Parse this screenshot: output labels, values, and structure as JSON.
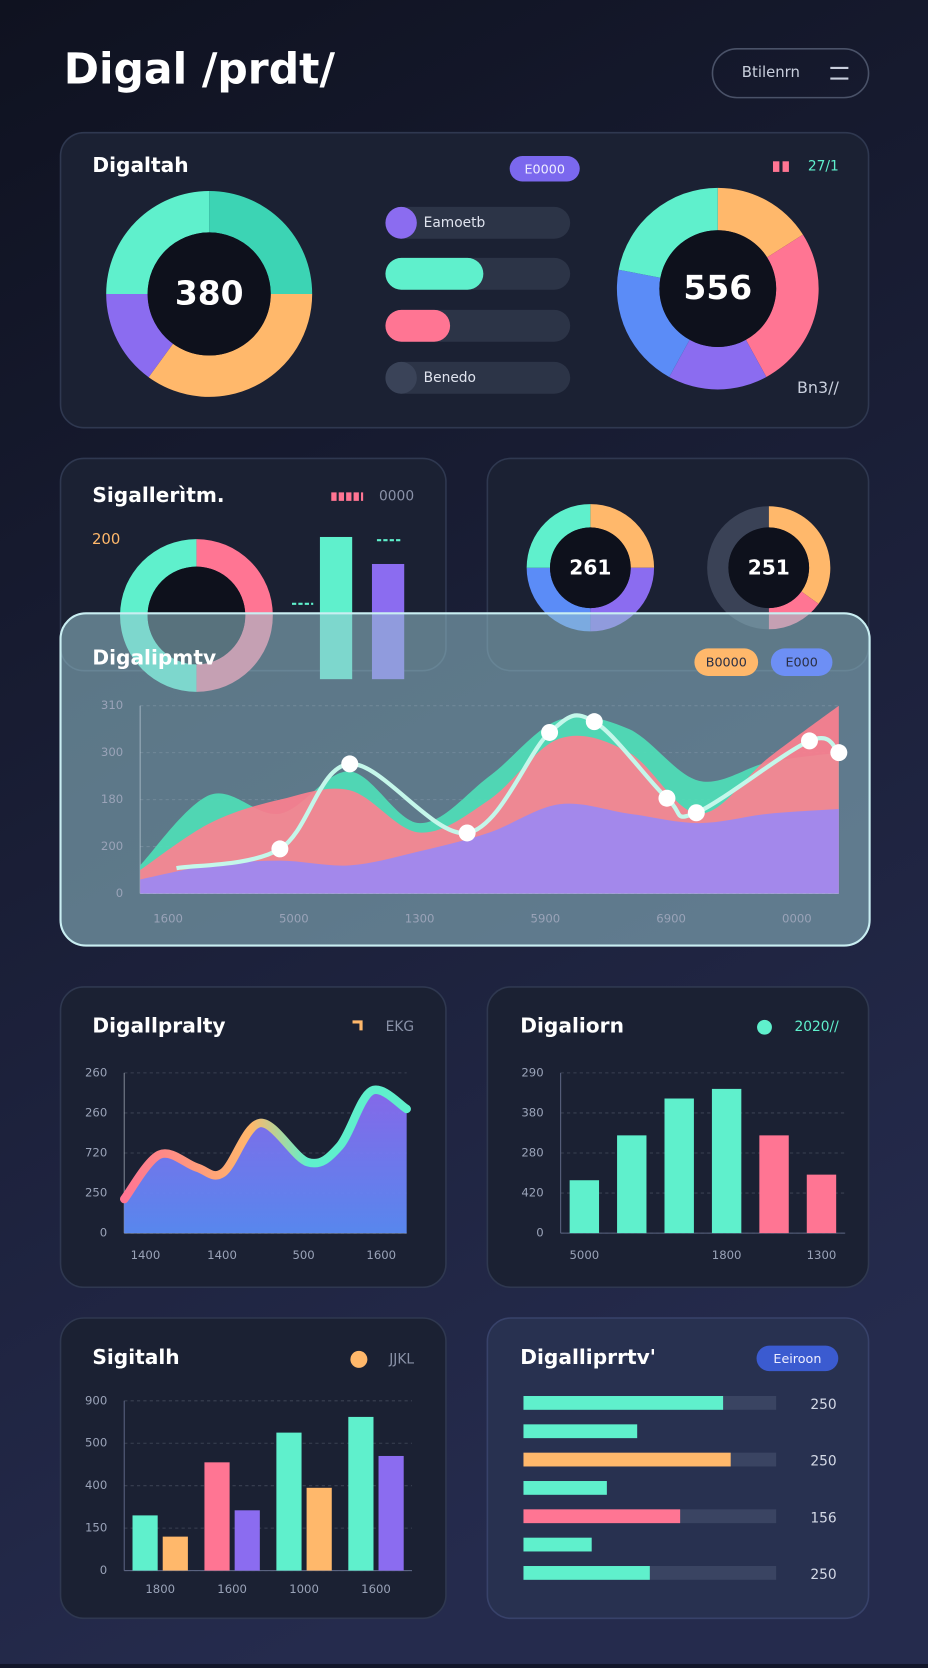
{
  "header": {
    "title": "Digal /prdt/",
    "button": "Btilenrn"
  },
  "chart_data": [
    {
      "type": "donut",
      "title": "Digaltah",
      "badge": "E0000",
      "center_label": "380",
      "values": [
        25,
        35,
        15,
        25
      ],
      "colors": [
        "#3cd4b4",
        "#ffb86b",
        "#8b6cf0",
        "#5ff0cc"
      ]
    },
    {
      "type": "progress",
      "labels": [
        "Eamoetb",
        null,
        null,
        "Benedo"
      ],
      "values": [
        17,
        53,
        35,
        17
      ],
      "colors": [
        "#8b6cf0",
        "#5ff0cc",
        "#ff7593",
        "#3a4358"
      ]
    },
    {
      "type": "donut",
      "center_label": "556",
      "legend_text": "27/1",
      "note": "Bn3//",
      "values": [
        16,
        26,
        16,
        20,
        22
      ],
      "colors": [
        "#ffb86b",
        "#ff7593",
        "#8b6cf0",
        "#5b8cf7",
        "#5ff0cc"
      ]
    },
    {
      "type": "donut",
      "title": "Sigallerìtm.",
      "annotation": "200",
      "legend_text": "0000",
      "values": [
        50,
        50
      ],
      "colors": [
        "#ff7593",
        "#5ff0cc"
      ]
    },
    {
      "type": "bar",
      "values": [
        100,
        81
      ],
      "colors": [
        "#5ff0cc",
        "#8b6cf0"
      ],
      "ylim": [
        0,
        100
      ]
    },
    {
      "type": "donut",
      "center_label": "261",
      "values": [
        25,
        25,
        25,
        25
      ],
      "colors": [
        "#ffb86b",
        "#8b6cf0",
        "#5b8cf7",
        "#5ff0cc"
      ]
    },
    {
      "type": "donut",
      "center_label": "251",
      "values": [
        35,
        15,
        50
      ],
      "colors": [
        "#ffb86b",
        "#ff7593",
        "#3a4256"
      ]
    },
    {
      "type": "area",
      "title": "Digalipmtv",
      "badges": [
        "B0000",
        "E000"
      ],
      "x": [
        0,
        5,
        10,
        15,
        20,
        25,
        30,
        35,
        40,
        45,
        50
      ],
      "series": [
        {
          "type": "area",
          "color": "#4fe0b8",
          "values": [
            60,
            210,
            170,
            260,
            150,
            250,
            370,
            350,
            240,
            280,
            300
          ]
        },
        {
          "type": "area",
          "color": "#ff7f8f",
          "values": [
            50,
            150,
            200,
            220,
            130,
            200,
            330,
            300,
            170,
            290,
            400
          ]
        },
        {
          "type": "area",
          "color": "#9a88f5",
          "values": [
            30,
            60,
            70,
            60,
            90,
            130,
            190,
            170,
            150,
            170,
            180
          ]
        },
        {
          "type": "line",
          "color": "#c4f7ea",
          "x": [
            2.6,
            10,
            15,
            23.4,
            29.3,
            32.5,
            37.7,
            39.8,
            47.9,
            50
          ],
          "values": [
            54,
            95,
            276,
            129,
            343,
            366,
            203,
            172,
            325,
            300
          ]
        }
      ],
      "xlim": [
        0,
        50
      ],
      "ylim": [
        0,
        400
      ],
      "xticks": [
        {
          "value": 2,
          "label": "1600"
        },
        {
          "value": 11,
          "label": "5000"
        },
        {
          "value": 20,
          "label": "1300"
        },
        {
          "value": 29,
          "label": "5900"
        },
        {
          "value": 38,
          "label": "6900"
        },
        {
          "value": 47,
          "label": "0000"
        }
      ],
      "yticks": [
        0,
        {
          "value": 100,
          "label": "200"
        },
        {
          "value": 200,
          "label": "180"
        },
        {
          "value": 300,
          "label": "300"
        },
        {
          "value": 400,
          "label": "310"
        }
      ],
      "grid": true
    },
    {
      "type": "area",
      "title": "Digallpralty",
      "legend_text": "EKG",
      "x": [
        0,
        1,
        2.05,
        2.8,
        3.85,
        5.2,
        6.1,
        7,
        8
      ],
      "series": [
        {
          "type": "area",
          "style": "gradient",
          "color": "#6a7cf5",
          "values": [
            85,
            196,
            164,
            151,
            275,
            177,
            217,
            355,
            310
          ]
        }
      ],
      "xlim": [
        0,
        8
      ],
      "ylim": [
        0,
        400
      ],
      "xticks": [
        {
          "value": 0.6,
          "label": "1400"
        },
        {
          "value": 2.77,
          "label": "1400"
        },
        {
          "value": 5.08,
          "label": "500"
        },
        {
          "value": 7.28,
          "label": "1600"
        }
      ],
      "yticks": [
        0,
        {
          "value": 100,
          "label": "250"
        },
        {
          "value": 200,
          "label": "720"
        },
        {
          "value": 300,
          "label": "260"
        },
        {
          "value": 400,
          "label": "260"
        }
      ],
      "grid": true
    },
    {
      "type": "bar",
      "title": "Digaliorn",
      "legend_text": "2020//",
      "categories": [
        "5000",
        null,
        null,
        "1800",
        null,
        "1300"
      ],
      "values": [
        132,
        244,
        336,
        360,
        244,
        146
      ],
      "colors": [
        "#5ff0cc",
        "#5ff0cc",
        "#5ff0cc",
        "#5ff0cc",
        "#ff7593",
        "#ff7593"
      ],
      "ylim": [
        0,
        400
      ],
      "yticks": [
        0,
        {
          "value": 100,
          "label": "420"
        },
        {
          "value": 200,
          "label": "280"
        },
        {
          "value": 300,
          "label": "380"
        },
        {
          "value": 400,
          "label": "290"
        }
      ],
      "grid": true
    },
    {
      "type": "bar",
      "title": "Sigitalh",
      "legend_text": "JJKL",
      "categories": [
        "1800",
        "1600",
        "1000",
        "1600"
      ],
      "series": [
        {
          "values": [
            130,
            255,
            325,
            362
          ],
          "colors": [
            "#5ff0cc",
            "#ff7593",
            "#5ff0cc",
            "#5ff0cc"
          ]
        },
        {
          "values": [
            80,
            142,
            195,
            270
          ],
          "colors": [
            "#ffb86b",
            "#8b6cf0",
            "#ffb86b",
            "#8b6cf0"
          ]
        }
      ],
      "ylim": [
        0,
        400
      ],
      "yticks": [
        0,
        {
          "value": 100,
          "label": "150"
        },
        {
          "value": 200,
          "label": "400"
        },
        {
          "value": 300,
          "label": "500"
        },
        {
          "value": 400,
          "label": "900"
        }
      ],
      "grid": true
    },
    {
      "type": "hbar",
      "title": "Digalliprrtv'",
      "badge": "Eeiroon",
      "values": [
        79,
        45,
        82,
        33,
        62,
        27,
        50
      ],
      "colors": [
        "#5ff0cc",
        "#5ff0cc",
        "#ffb86b",
        "#5ff0cc",
        "#ff7593",
        "#5ff0cc",
        "#5ff0cc"
      ],
      "side_labels": [
        "250",
        null,
        "250",
        null,
        "156",
        null,
        "250"
      ],
      "xlim": [
        0,
        100
      ]
    }
  ]
}
